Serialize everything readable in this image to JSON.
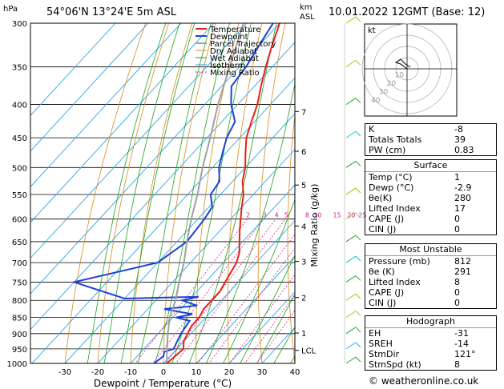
{
  "header": {
    "hpa": "hPa",
    "location": "54°06'N  13°24'E  5m  ASL",
    "km": "km",
    "asl": "ASL",
    "datetime": "10.01.2022  12GMT  (Base: 12)"
  },
  "chart_data": {
    "type": "line",
    "xlabel": "Dewpoint / Temperature (°C)",
    "ylabel_right": "Mixing Ratio (g/kg)",
    "x_ticks": [
      -30,
      -20,
      -10,
      0,
      10,
      20,
      30,
      40
    ],
    "p_ticks": [
      300,
      350,
      400,
      450,
      500,
      550,
      600,
      650,
      700,
      750,
      800,
      850,
      900,
      950,
      1000
    ],
    "km_ticks": [
      {
        "p": 410,
        "label": "7"
      },
      {
        "p": 472,
        "label": "6"
      },
      {
        "p": 532,
        "label": "5"
      },
      {
        "p": 615,
        "label": "4"
      },
      {
        "p": 697,
        "label": "3"
      },
      {
        "p": 792,
        "label": "2"
      },
      {
        "p": 898,
        "label": "1"
      },
      {
        "p": 955,
        "label": "LCL"
      }
    ],
    "mixing_ratio_labels": [
      "2",
      "3",
      "4",
      "5",
      "8",
      "10",
      "15",
      "20",
      "25"
    ],
    "legend": [
      "Temperature",
      "Dewpoint",
      "Parcel Trajectory",
      "Dry Adiabat",
      "Wet Adiabat",
      "Isotherm",
      "Mixing Ratio"
    ],
    "colors": {
      "temperature": "#e8201b",
      "dewpoint": "#1f3fd8",
      "parcel": "#a0a0a0",
      "dry_adiabat": "#d88a1a",
      "wet_adiabat": "#1aa31a",
      "isotherm": "#2fa6e0",
      "mixing_ratio": "#d0278c"
    },
    "series": [
      {
        "name": "Temperature",
        "points": [
          [
            1,
            1000
          ],
          [
            1.5,
            975
          ],
          [
            2,
            950
          ],
          [
            0,
            925
          ],
          [
            -1,
            900
          ],
          [
            -2,
            875
          ],
          [
            -2,
            850
          ],
          [
            -3,
            825
          ],
          [
            -3,
            800
          ],
          [
            -3,
            775
          ],
          [
            -4,
            750
          ],
          [
            -5,
            725
          ],
          [
            -6,
            700
          ],
          [
            -8,
            675
          ],
          [
            -11,
            650
          ],
          [
            -14,
            625
          ],
          [
            -17,
            600
          ],
          [
            -20,
            575
          ],
          [
            -23,
            550
          ],
          [
            -27,
            525
          ],
          [
            -30,
            500
          ],
          [
            -34,
            475
          ],
          [
            -38,
            450
          ],
          [
            -41,
            425
          ],
          [
            -44,
            400
          ],
          [
            -48,
            375
          ],
          [
            -52,
            350
          ],
          [
            -56,
            325
          ],
          [
            -60,
            300
          ]
        ]
      },
      {
        "name": "Dewpoint",
        "points": [
          [
            -2.9,
            1000
          ],
          [
            -2,
            975
          ],
          [
            -3,
            960
          ],
          [
            -1,
            950
          ],
          [
            -2,
            925
          ],
          [
            -3,
            900
          ],
          [
            -4,
            860
          ],
          [
            -9,
            850
          ],
          [
            -5,
            840
          ],
          [
            -15,
            825
          ],
          [
            -6,
            815
          ],
          [
            -12,
            800
          ],
          [
            -8,
            790
          ],
          [
            -30,
            795
          ],
          [
            -50,
            750
          ],
          [
            -30,
            700
          ],
          [
            -27,
            650
          ],
          [
            -28,
            600
          ],
          [
            -29,
            575
          ],
          [
            -33,
            550
          ],
          [
            -34,
            525
          ],
          [
            -38,
            500
          ],
          [
            -41,
            475
          ],
          [
            -44,
            450
          ],
          [
            -46,
            425
          ],
          [
            -52,
            400
          ],
          [
            -57,
            375
          ],
          [
            -58,
            350
          ],
          [
            -60,
            325
          ],
          [
            -62,
            300
          ]
        ]
      },
      {
        "name": "Parcel Trajectory",
        "points": [
          [
            1,
            1000
          ],
          [
            -3,
            950
          ],
          [
            -7,
            900
          ],
          [
            -11,
            850
          ],
          [
            -14,
            800
          ],
          [
            -18,
            750
          ],
          [
            -22,
            700
          ],
          [
            -27,
            650
          ],
          [
            -32,
            600
          ],
          [
            -37,
            550
          ],
          [
            -43,
            500
          ],
          [
            -49,
            450
          ],
          [
            -56,
            400
          ],
          [
            -63,
            350
          ],
          [
            -71,
            300
          ]
        ]
      }
    ]
  },
  "indices": {
    "rows": [
      {
        "label": "K",
        "value": "-8"
      },
      {
        "label": "Totals Totals",
        "value": "39"
      },
      {
        "label": "PW (cm)",
        "value": "0.83"
      }
    ]
  },
  "surface": {
    "title": "Surface",
    "rows": [
      {
        "label": "Temp (°C)",
        "value": "1"
      },
      {
        "label": "Dewp (°C)",
        "value": "-2.9"
      },
      {
        "label": "θe(K)",
        "value": "280"
      },
      {
        "label": "Lifted Index",
        "value": "17"
      },
      {
        "label": "CAPE (J)",
        "value": "0"
      },
      {
        "label": "CIN (J)",
        "value": "0"
      }
    ]
  },
  "most_unstable": {
    "title": "Most Unstable",
    "rows": [
      {
        "label": "Pressure (mb)",
        "value": "812"
      },
      {
        "label": "θe (K)",
        "value": "291"
      },
      {
        "label": "Lifted Index",
        "value": "8"
      },
      {
        "label": "CAPE (J)",
        "value": "0"
      },
      {
        "label": "CIN (J)",
        "value": "0"
      }
    ]
  },
  "hodograph_table": {
    "title": "Hodograph",
    "rows": [
      {
        "label": "EH",
        "value": "-31"
      },
      {
        "label": "SREH",
        "value": "-14"
      },
      {
        "label": "StmDir",
        "value": "121°"
      },
      {
        "label": "StmSpd (kt)",
        "value": "8"
      }
    ]
  },
  "hodograph": {
    "label": "kt",
    "ring_labels": [
      "10",
      "20",
      "30",
      "40"
    ]
  },
  "footer": "© weatheronline.co.uk"
}
